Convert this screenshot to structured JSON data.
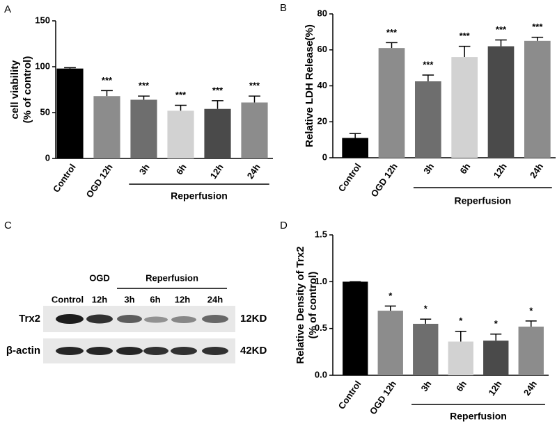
{
  "chart_data": [
    {
      "type": "bar",
      "panel": "A",
      "ylabel": [
        "cell viability",
        "(% of control)"
      ],
      "categories": [
        "Control",
        "OGD 12h",
        "3h",
        "6h",
        "12h",
        "24h"
      ],
      "values": [
        98,
        68,
        64,
        52,
        54,
        61
      ],
      "errors": [
        1,
        6,
        4,
        6,
        9,
        7
      ],
      "annotations": [
        null,
        "***",
        "***",
        "***",
        "***",
        "***"
      ],
      "colors": [
        "#000000",
        "#8c8c8c",
        "#6e6e6e",
        "#d2d2d2",
        "#4a4a4a",
        "#8c8c8c"
      ],
      "ylim": [
        0,
        150
      ],
      "yticks": [
        0,
        50,
        100,
        150
      ],
      "group_label": "Reperfusion"
    },
    {
      "type": "bar",
      "panel": "B",
      "ylabel": [
        "Relative LDH Release(%)"
      ],
      "categories": [
        "Control",
        "OGD 12h",
        "3h",
        "6h",
        "12h",
        "24h"
      ],
      "values": [
        11,
        61,
        42.5,
        56,
        62,
        65
      ],
      "errors": [
        2.5,
        3,
        3.5,
        6,
        3.5,
        2
      ],
      "annotations": [
        null,
        "***",
        "***",
        "***",
        "***",
        "***"
      ],
      "colors": [
        "#000000",
        "#8c8c8c",
        "#6e6e6e",
        "#d2d2d2",
        "#4a4a4a",
        "#8c8c8c"
      ],
      "ylim": [
        0,
        80
      ],
      "yticks": [
        0,
        20,
        40,
        60,
        80
      ],
      "group_label": "Reperfusion"
    },
    {
      "type": "bar",
      "panel": "D",
      "ylabel": [
        "Relative Density of Trx2",
        "(% of control)"
      ],
      "categories": [
        "Control",
        "OGD 12h",
        "3h",
        "6h",
        "12h",
        "24h"
      ],
      "values": [
        1.0,
        0.69,
        0.55,
        0.36,
        0.37,
        0.52
      ],
      "errors": [
        0,
        0.05,
        0.05,
        0.11,
        0.07,
        0.06
      ],
      "annotations": [
        null,
        "*",
        "*",
        "*",
        "*",
        "*"
      ],
      "colors": [
        "#000000",
        "#8c8c8c",
        "#6e6e6e",
        "#d2d2d2",
        "#4a4a4a",
        "#8c8c8c"
      ],
      "ylim": [
        0,
        1.5
      ],
      "yticks": [
        {
          "value": 0,
          "label": "0.0"
        },
        {
          "value": 0.5,
          "label": "0.5"
        },
        {
          "value": 1,
          "label": "1.0"
        },
        {
          "value": 1.5,
          "label": "1.5"
        }
      ],
      "group_label": "Reperfusion"
    }
  ],
  "blot": {
    "panel": "C",
    "ogd": "OGD",
    "reperfusion": "Reperfusion",
    "lanes": [
      "Control",
      "12h",
      "3h",
      "6h",
      "12h",
      "24h"
    ],
    "rows": [
      "Trx2",
      "β-actin"
    ],
    "sizes": [
      "12KD",
      "42KD"
    ]
  }
}
